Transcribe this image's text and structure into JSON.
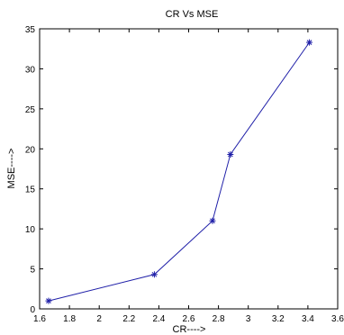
{
  "chart_data": {
    "type": "line",
    "title": "CR Vs MSE",
    "xlabel": "CR---->",
    "ylabel": "MSE---->",
    "xlim": [
      1.6,
      3.6
    ],
    "ylim": [
      0,
      35
    ],
    "xticks": [
      1.6,
      1.8,
      2,
      2.2,
      2.4,
      2.6,
      2.8,
      3,
      3.2,
      3.4,
      3.6
    ],
    "yticks": [
      0,
      5,
      10,
      15,
      20,
      25,
      30,
      35
    ],
    "grid": false,
    "series": [
      {
        "color": "#1f1fa8",
        "marker": "star",
        "x": [
          1.66,
          2.37,
          2.76,
          2.88,
          3.41
        ],
        "y": [
          1.0,
          4.3,
          11.0,
          19.3,
          33.3
        ]
      }
    ]
  }
}
